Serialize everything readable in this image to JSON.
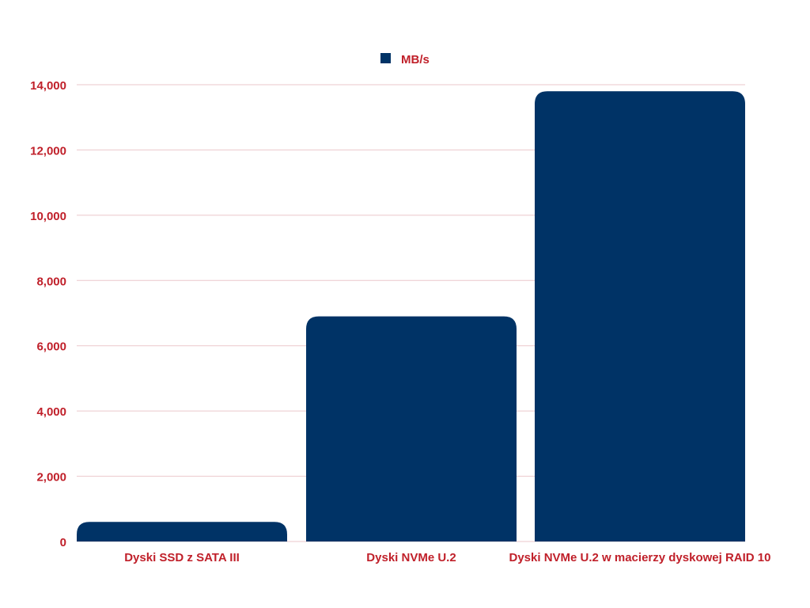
{
  "colors": {
    "bar": "#003366",
    "text": "#c0202a",
    "grid": "#ebc7cb",
    "background": "#ffffff"
  },
  "chart_data": {
    "type": "bar",
    "categories": [
      "Dyski SSD z SATA III",
      "Dyski NVMe U.2",
      "Dyski NVMe U.2 w macierzy dyskowej RAID 10"
    ],
    "series": [
      {
        "name": "MB/s",
        "values": [
          600,
          6900,
          13800
        ]
      }
    ],
    "ylim": [
      0,
      14000
    ],
    "yticks": [
      0,
      2000,
      4000,
      6000,
      8000,
      10000,
      12000,
      14000
    ],
    "ytick_labels": [
      "0",
      "2,000",
      "4,000",
      "6,000",
      "8,000",
      "10,000",
      "12,000",
      "14,000"
    ],
    "grid": true,
    "legend_position": "top-center"
  }
}
